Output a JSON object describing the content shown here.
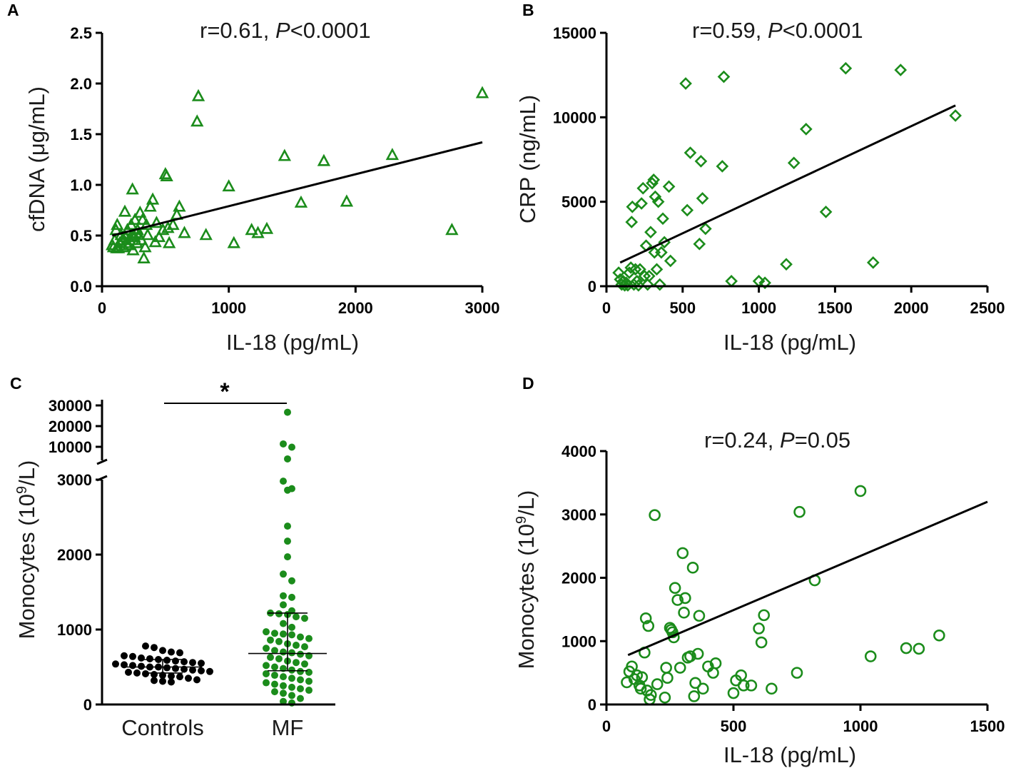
{
  "chart_data": [
    {
      "panel": "A",
      "type": "scatter",
      "marker": "triangle",
      "stat_r": "r=0.61, ",
      "stat_p_label": "P",
      "stat_p_value": "<0.0001",
      "xlabel": "IL-18 (pg/mL)",
      "ylabel": "cfDNA (μg/mL)",
      "xlim": [
        0,
        3000
      ],
      "ylim": [
        0,
        2.5
      ],
      "x_ticks": [
        0,
        1000,
        2000,
        3000
      ],
      "x_tick_labels": [
        "0",
        "1000",
        "2000",
        "3000"
      ],
      "y_ticks": [
        0,
        0.5,
        1,
        1.5,
        2,
        2.5
      ],
      "y_tick_labels": [
        "0.0",
        "0.5",
        "1.0",
        "1.5",
        "2.0",
        "2.5"
      ],
      "fit_line": {
        "x": [
          80,
          3000
        ],
        "y": [
          0.5,
          1.42
        ]
      },
      "points": [
        [
          80,
          0.4
        ],
        [
          90,
          0.38
        ],
        [
          100,
          0.45
        ],
        [
          110,
          0.55
        ],
        [
          115,
          0.37
        ],
        [
          120,
          0.6
        ],
        [
          130,
          0.37
        ],
        [
          140,
          0.42
        ],
        [
          150,
          0.5
        ],
        [
          160,
          0.45
        ],
        [
          170,
          0.38
        ],
        [
          180,
          0.73
        ],
        [
          185,
          0.48
        ],
        [
          190,
          0.42
        ],
        [
          200,
          0.55
        ],
        [
          210,
          0.4
        ],
        [
          220,
          0.45
        ],
        [
          230,
          0.6
        ],
        [
          235,
          0.5
        ],
        [
          240,
          0.95
        ],
        [
          245,
          0.35
        ],
        [
          250,
          0.5
        ],
        [
          255,
          0.48
        ],
        [
          260,
          0.65
        ],
        [
          270,
          0.52
        ],
        [
          275,
          0.42
        ],
        [
          280,
          0.55
        ],
        [
          290,
          0.5
        ],
        [
          300,
          0.72
        ],
        [
          310,
          0.45
        ],
        [
          320,
          0.65
        ],
        [
          330,
          0.27
        ],
        [
          340,
          0.38
        ],
        [
          350,
          0.6
        ],
        [
          360,
          0.5
        ],
        [
          380,
          0.78
        ],
        [
          400,
          0.85
        ],
        [
          420,
          0.43
        ],
        [
          430,
          0.62
        ],
        [
          450,
          0.48
        ],
        [
          480,
          0.55
        ],
        [
          500,
          1.1
        ],
        [
          510,
          1.08
        ],
        [
          520,
          0.57
        ],
        [
          530,
          0.42
        ],
        [
          560,
          0.6
        ],
        [
          590,
          0.7
        ],
        [
          610,
          0.78
        ],
        [
          650,
          0.52
        ],
        [
          750,
          1.62
        ],
        [
          760,
          1.87
        ],
        [
          820,
          0.5
        ],
        [
          1000,
          0.98
        ],
        [
          1040,
          0.42
        ],
        [
          1180,
          0.55
        ],
        [
          1230,
          0.52
        ],
        [
          1300,
          0.56
        ],
        [
          1440,
          1.28
        ],
        [
          1570,
          0.82
        ],
        [
          1750,
          1.23
        ],
        [
          1930,
          0.83
        ],
        [
          2290,
          1.29
        ],
        [
          2760,
          0.55
        ],
        [
          3000,
          1.9
        ]
      ]
    },
    {
      "panel": "B",
      "type": "scatter",
      "marker": "diamond",
      "stat_r": "r=0.59, ",
      "stat_p_label": "P",
      "stat_p_value": "<0.0001",
      "xlabel": "IL-18 (pg/mL)",
      "ylabel": "CRP (ng/mL)",
      "xlim": [
        0,
        2500
      ],
      "ylim": [
        0,
        15000
      ],
      "x_ticks": [
        0,
        500,
        1000,
        1500,
        2000,
        2500
      ],
      "x_tick_labels": [
        "0",
        "500",
        "1000",
        "1500",
        "2000",
        "2500"
      ],
      "y_ticks": [
        0,
        5000,
        10000,
        15000
      ],
      "y_tick_labels": [
        "0",
        "5000",
        "10000",
        "15000"
      ],
      "fit_line": {
        "x": [
          90,
          2290
        ],
        "y": [
          1400,
          10700
        ]
      },
      "points": [
        [
          80,
          800
        ],
        [
          90,
          400
        ],
        [
          100,
          100
        ],
        [
          110,
          300
        ],
        [
          120,
          50
        ],
        [
          130,
          200
        ],
        [
          140,
          50
        ],
        [
          150,
          800
        ],
        [
          160,
          1100
        ],
        [
          165,
          3800
        ],
        [
          170,
          4700
        ],
        [
          180,
          100
        ],
        [
          190,
          1000
        ],
        [
          200,
          300
        ],
        [
          210,
          50
        ],
        [
          220,
          1000
        ],
        [
          230,
          4900
        ],
        [
          240,
          5800
        ],
        [
          250,
          600
        ],
        [
          260,
          2400
        ],
        [
          270,
          100
        ],
        [
          280,
          600
        ],
        [
          290,
          3200
        ],
        [
          300,
          6100
        ],
        [
          310,
          6300
        ],
        [
          315,
          2000
        ],
        [
          320,
          5300
        ],
        [
          330,
          1000
        ],
        [
          340,
          5000
        ],
        [
          350,
          100
        ],
        [
          360,
          2000
        ],
        [
          370,
          4000
        ],
        [
          380,
          2600
        ],
        [
          410,
          5900
        ],
        [
          420,
          1500
        ],
        [
          520,
          12000
        ],
        [
          530,
          4500
        ],
        [
          550,
          7900
        ],
        [
          610,
          2500
        ],
        [
          620,
          7400
        ],
        [
          630,
          5200
        ],
        [
          650,
          3400
        ],
        [
          760,
          7100
        ],
        [
          770,
          12400
        ],
        [
          820,
          300
        ],
        [
          1000,
          300
        ],
        [
          1040,
          200
        ],
        [
          1180,
          1300
        ],
        [
          1230,
          7300
        ],
        [
          1310,
          9300
        ],
        [
          1440,
          4400
        ],
        [
          1570,
          12900
        ],
        [
          1750,
          1400
        ],
        [
          1930,
          12800
        ],
        [
          2290,
          10100
        ]
      ]
    },
    {
      "panel": "C",
      "type": "dot_strip",
      "xlabel": "",
      "ylabel_main": "Monocytes (10",
      "ylabel_sup": "9",
      "ylabel_tail": "/L)",
      "categories": [
        "Controls",
        "MF"
      ],
      "y_ticks_lower": [
        0,
        1000,
        2000,
        3000
      ],
      "y_tick_labels_lower": [
        "0",
        "1000",
        "2000",
        "3000"
      ],
      "y_ticks_upper": [
        10000,
        20000,
        30000
      ],
      "y_tick_labels_upper": [
        "10000",
        "20000",
        "30000"
      ],
      "axis_break": "3000-8000",
      "significance": "*",
      "series": [
        {
          "name": "Controls",
          "median": 500,
          "error_low": 420,
          "error_high": 600,
          "values": [
            780,
            760,
            720,
            700,
            690,
            650,
            640,
            620,
            610,
            600,
            590,
            580,
            570,
            560,
            550,
            540,
            530,
            520,
            510,
            500,
            500,
            490,
            480,
            470,
            460,
            450,
            440,
            430,
            420,
            410,
            400,
            390,
            380,
            370,
            350,
            330,
            320,
            310,
            300
          ]
        },
        {
          "name": "MF",
          "median": 680,
          "error_low": 450,
          "error_high": 1220,
          "values": [
            26700,
            11400,
            9800,
            3400,
            2980,
            2880,
            2860,
            2380,
            2180,
            1970,
            1740,
            1650,
            1450,
            1430,
            1330,
            1250,
            1220,
            1210,
            1200,
            1170,
            1150,
            1080,
            1030,
            970,
            950,
            940,
            930,
            900,
            880,
            860,
            840,
            810,
            790,
            770,
            750,
            720,
            700,
            690,
            670,
            650,
            630,
            610,
            580,
            560,
            540,
            520,
            500,
            480,
            460,
            440,
            430,
            410,
            390,
            370,
            350,
            330,
            310,
            290,
            270,
            250,
            230,
            210,
            190,
            170,
            150,
            120,
            80,
            40,
            20
          ]
        }
      ]
    },
    {
      "panel": "D",
      "type": "scatter",
      "marker": "circle",
      "stat_r": "r=0.24, ",
      "stat_p_label": "P",
      "stat_p_value": "=0.05",
      "xlabel": "IL-18 (pg/mL)",
      "ylabel_main": "Monocytes (10",
      "ylabel_sup": "9",
      "ylabel_tail": "/L)",
      "xlim": [
        0,
        1500
      ],
      "ylim": [
        0,
        4000
      ],
      "x_ticks": [
        0,
        500,
        1000,
        1500
      ],
      "x_tick_labels": [
        "0",
        "500",
        "1000",
        "1500"
      ],
      "y_ticks": [
        0,
        1000,
        2000,
        3000,
        4000
      ],
      "y_tick_labels": [
        "0",
        "1000",
        "2000",
        "3000",
        "4000"
      ],
      "fit_line": {
        "x": [
          85,
          1500
        ],
        "y": [
          780,
          3200
        ]
      },
      "points": [
        [
          80,
          350
        ],
        [
          90,
          520
        ],
        [
          100,
          600
        ],
        [
          110,
          400
        ],
        [
          120,
          460
        ],
        [
          130,
          300
        ],
        [
          135,
          250
        ],
        [
          140,
          430
        ],
        [
          150,
          820
        ],
        [
          155,
          1360
        ],
        [
          160,
          220
        ],
        [
          165,
          1240
        ],
        [
          170,
          80
        ],
        [
          175,
          150
        ],
        [
          190,
          2990
        ],
        [
          200,
          320
        ],
        [
          230,
          110
        ],
        [
          235,
          580
        ],
        [
          240,
          420
        ],
        [
          250,
          1210
        ],
        [
          255,
          1180
        ],
        [
          260,
          1140
        ],
        [
          265,
          1060
        ],
        [
          270,
          1840
        ],
        [
          280,
          1650
        ],
        [
          290,
          580
        ],
        [
          300,
          2390
        ],
        [
          305,
          1450
        ],
        [
          310,
          1680
        ],
        [
          320,
          740
        ],
        [
          330,
          760
        ],
        [
          340,
          2160
        ],
        [
          345,
          130
        ],
        [
          350,
          340
        ],
        [
          360,
          800
        ],
        [
          365,
          1400
        ],
        [
          380,
          250
        ],
        [
          400,
          600
        ],
        [
          420,
          500
        ],
        [
          430,
          650
        ],
        [
          500,
          180
        ],
        [
          510,
          380
        ],
        [
          530,
          460
        ],
        [
          540,
          300
        ],
        [
          570,
          300
        ],
        [
          600,
          1200
        ],
        [
          610,
          980
        ],
        [
          620,
          1410
        ],
        [
          650,
          250
        ],
        [
          750,
          500
        ],
        [
          760,
          3040
        ],
        [
          820,
          1960
        ],
        [
          1000,
          3370
        ],
        [
          1040,
          760
        ],
        [
          1180,
          890
        ],
        [
          1230,
          880
        ],
        [
          1310,
          1090
        ]
      ]
    }
  ]
}
